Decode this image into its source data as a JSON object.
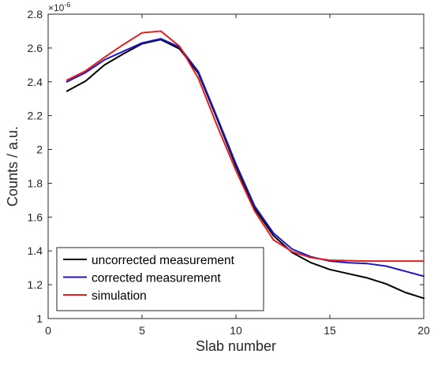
{
  "chart_data": {
    "type": "line",
    "title": "",
    "xlabel": "Slab number",
    "ylabel": "Counts / a.u.",
    "y_multiplier_base": "×10",
    "y_multiplier_exponent": "-6",
    "xlim": [
      0,
      20
    ],
    "ylim": [
      1,
      2.8
    ],
    "x_ticks": [
      0,
      5,
      10,
      15,
      20
    ],
    "y_ticks": [
      1,
      1.2,
      1.4,
      1.6,
      1.8,
      2,
      2.2,
      2.4,
      2.6,
      2.8
    ],
    "grid": false,
    "legend_position": "bottom-left",
    "x": [
      1,
      2,
      3,
      4,
      5,
      6,
      7,
      8,
      9,
      10,
      11,
      12,
      13,
      14,
      15,
      16,
      17,
      18,
      19,
      20
    ],
    "series": [
      {
        "name": "uncorrected measurement",
        "color": "#000000",
        "values": [
          2.345,
          2.405,
          2.5,
          2.565,
          2.625,
          2.65,
          2.595,
          2.45,
          2.18,
          1.9,
          1.65,
          1.49,
          1.39,
          1.33,
          1.29,
          1.265,
          1.24,
          1.205,
          1.155,
          1.12
        ]
      },
      {
        "name": "corrected measurement",
        "color": "#1f17c4",
        "values": [
          2.4,
          2.455,
          2.53,
          2.58,
          2.63,
          2.655,
          2.605,
          2.46,
          2.19,
          1.915,
          1.665,
          1.505,
          1.41,
          1.365,
          1.34,
          1.33,
          1.325,
          1.31,
          1.28,
          1.25
        ]
      },
      {
        "name": "simulation",
        "color": "#e01f1f",
        "values": [
          2.41,
          2.465,
          2.545,
          2.62,
          2.69,
          2.7,
          2.61,
          2.42,
          2.14,
          1.875,
          1.635,
          1.465,
          1.395,
          1.36,
          1.345,
          1.342,
          1.34,
          1.34,
          1.34,
          1.34
        ]
      }
    ]
  }
}
